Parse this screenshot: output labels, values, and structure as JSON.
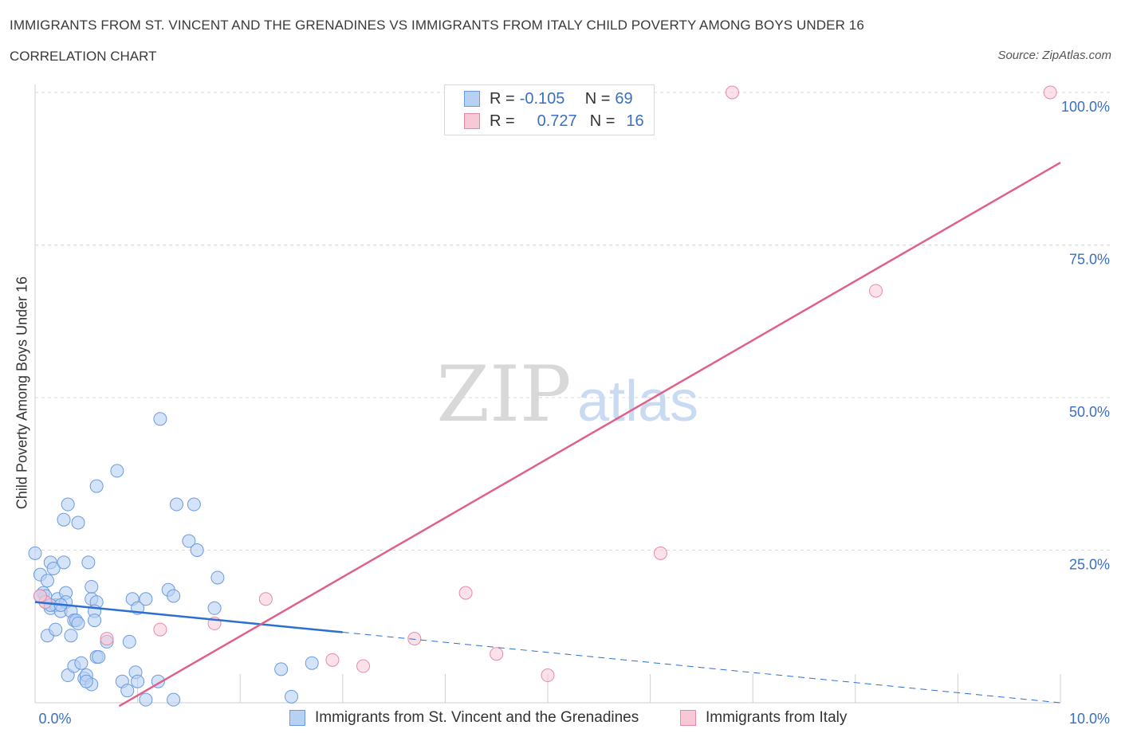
{
  "header": {
    "title": "IMMIGRANTS FROM ST. VINCENT AND THE GRENADINES VS IMMIGRANTS FROM ITALY CHILD POVERTY AMONG BOYS UNDER 16",
    "subtitle": "CORRELATION CHART",
    "source": "Source: ZipAtlas.com"
  },
  "watermark": {
    "zip": "ZIP",
    "atlas": "atlas"
  },
  "colors": {
    "blue_fill": "#b8d1f2",
    "blue_stroke": "#6a9be0",
    "blue_line": "#2b6fd1",
    "pink_fill": "#f7c9d7",
    "pink_stroke": "#e88aa6",
    "pink_line": "#e0608a",
    "axis_label": "#3a6fc4",
    "grid": "#d9d9d9"
  },
  "legend_top": {
    "rows": [
      {
        "series": "blue",
        "r_label": "R =",
        "r_value": "-0.105",
        "n_label": "N =",
        "n_value": "69"
      },
      {
        "series": "pink",
        "r_label": "R =",
        "r_value": "0.727",
        "n_label": "N =",
        "n_value": "16"
      }
    ]
  },
  "chart_data": {
    "type": "scatter",
    "title": "IMMIGRANTS FROM ST. VINCENT AND THE GRENADINES VS IMMIGRANTS FROM ITALY CHILD POVERTY AMONG BOYS UNDER 16",
    "xlabel": "",
    "ylabel": "Child Poverty Among Boys Under 16",
    "xlim": [
      0,
      10
    ],
    "ylim": [
      0,
      100
    ],
    "x_tick_labels": [
      "0.0%",
      "10.0%"
    ],
    "y_tick_labels": [
      "25.0%",
      "50.0%",
      "75.0%",
      "100.0%"
    ],
    "y_ticks": [
      25,
      50,
      75,
      100
    ],
    "x_ticks": [
      0,
      1,
      2,
      3,
      4,
      5,
      6,
      7,
      8,
      9,
      10
    ],
    "grid": true,
    "series": [
      {
        "name": "Immigrants from St. Vincent and the Grenadines",
        "color": "blue",
        "R": -0.105,
        "N": 69,
        "trend": {
          "solid_x": [
            0,
            3.0
          ],
          "dashed_x": [
            3.0,
            10.0
          ],
          "intercept": 16.5,
          "slope": -1.65
        },
        "points": [
          [
            0.0,
            24.5
          ],
          [
            0.05,
            21.0
          ],
          [
            0.08,
            18.0
          ],
          [
            0.1,
            17.5
          ],
          [
            0.1,
            16.5
          ],
          [
            0.12,
            20.0
          ],
          [
            0.15,
            15.5
          ],
          [
            0.15,
            23.0
          ],
          [
            0.18,
            22.0
          ],
          [
            0.2,
            16.0
          ],
          [
            0.22,
            17.0
          ],
          [
            0.25,
            15.0
          ],
          [
            0.28,
            23.0
          ],
          [
            0.3,
            18.0
          ],
          [
            0.3,
            16.5
          ],
          [
            0.35,
            15.0
          ],
          [
            0.12,
            11.0
          ],
          [
            0.2,
            12.0
          ],
          [
            0.35,
            11.0
          ],
          [
            0.38,
            13.5
          ],
          [
            0.4,
            13.5
          ],
          [
            0.42,
            13.0
          ],
          [
            0.32,
            4.5
          ],
          [
            0.38,
            6.0
          ],
          [
            0.45,
            6.5
          ],
          [
            0.48,
            4.0
          ],
          [
            0.5,
            4.5
          ],
          [
            0.55,
            3.0
          ],
          [
            0.5,
            3.5
          ],
          [
            0.6,
            7.5
          ],
          [
            0.62,
            7.5
          ],
          [
            0.28,
            30.0
          ],
          [
            0.32,
            32.5
          ],
          [
            0.42,
            29.5
          ],
          [
            0.6,
            35.5
          ],
          [
            0.8,
            38.0
          ],
          [
            0.52,
            23.0
          ],
          [
            0.55,
            19.0
          ],
          [
            0.55,
            17.0
          ],
          [
            0.6,
            16.5
          ],
          [
            0.58,
            15.0
          ],
          [
            0.58,
            13.5
          ],
          [
            0.7,
            10.0
          ],
          [
            0.85,
            3.5
          ],
          [
            0.9,
            2.0
          ],
          [
            0.92,
            10.0
          ],
          [
            0.95,
            17.0
          ],
          [
            1.0,
            15.5
          ],
          [
            0.98,
            5.0
          ],
          [
            1.0,
            3.5
          ],
          [
            1.08,
            0.5
          ],
          [
            1.08,
            17.0
          ],
          [
            1.22,
            46.5
          ],
          [
            1.2,
            3.5
          ],
          [
            1.3,
            18.5
          ],
          [
            1.35,
            17.5
          ],
          [
            1.35,
            0.5
          ],
          [
            1.38,
            32.5
          ],
          [
            1.5,
            26.5
          ],
          [
            1.55,
            32.5
          ],
          [
            1.58,
            25.0
          ],
          [
            1.75,
            15.5
          ],
          [
            1.78,
            20.5
          ],
          [
            2.4,
            5.5
          ],
          [
            2.5,
            1.0
          ],
          [
            2.7,
            6.5
          ],
          [
            0.05,
            17.5
          ],
          [
            0.15,
            16.0
          ],
          [
            0.25,
            16.0
          ]
        ]
      },
      {
        "name": "Immigrants from Italy",
        "color": "pink",
        "R": 0.727,
        "N": 16,
        "trend": {
          "x": [
            0.82,
            10.0
          ],
          "intercept": -8.5,
          "slope": 9.7
        },
        "points": [
          [
            0.1,
            16.5
          ],
          [
            0.05,
            17.5
          ],
          [
            0.7,
            10.5
          ],
          [
            1.22,
            12.0
          ],
          [
            1.75,
            13.0
          ],
          [
            2.25,
            17.0
          ],
          [
            2.9,
            7.0
          ],
          [
            3.2,
            6.0
          ],
          [
            3.7,
            10.5
          ],
          [
            4.2,
            18.0
          ],
          [
            4.5,
            8.0
          ],
          [
            5.0,
            4.5
          ],
          [
            6.1,
            24.5
          ],
          [
            6.8,
            100.0
          ],
          [
            8.2,
            67.5
          ],
          [
            9.9,
            100.0
          ]
        ]
      }
    ]
  },
  "legend_bottom": {
    "items": [
      {
        "series": "blue",
        "label": "Immigrants from St. Vincent and the Grenadines"
      },
      {
        "series": "pink",
        "label": "Immigrants from Italy"
      }
    ]
  }
}
